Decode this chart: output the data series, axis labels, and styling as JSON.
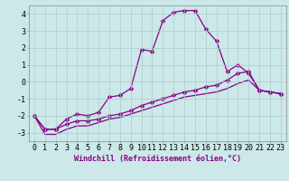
{
  "xlabel": "Windchill (Refroidissement éolien,°C)",
  "bg_color": "#cce8e8",
  "line_color": "#880088",
  "x_hours": [
    0,
    1,
    2,
    3,
    4,
    5,
    6,
    7,
    8,
    9,
    10,
    11,
    12,
    13,
    14,
    15,
    16,
    17,
    18,
    19,
    20,
    21,
    22,
    23
  ],
  "line1_y": [
    -2.0,
    -2.8,
    -2.8,
    -2.2,
    -1.9,
    -2.0,
    -1.8,
    -0.9,
    -0.8,
    -0.4,
    1.9,
    1.8,
    3.6,
    4.1,
    4.2,
    4.2,
    3.1,
    2.4,
    0.6,
    1.0,
    0.5,
    -0.5,
    -0.6,
    -0.7
  ],
  "line2_y": [
    -2.0,
    -2.8,
    -2.8,
    -2.5,
    -2.3,
    -2.3,
    -2.2,
    -2.0,
    -1.9,
    -1.7,
    -1.4,
    -1.2,
    -1.0,
    -0.8,
    -0.6,
    -0.5,
    -0.3,
    -0.2,
    0.1,
    0.5,
    0.6,
    -0.5,
    -0.6,
    -0.7
  ],
  "line3_y": [
    -2.0,
    -3.1,
    -3.1,
    -2.8,
    -2.6,
    -2.6,
    -2.4,
    -2.2,
    -2.1,
    -1.9,
    -1.7,
    -1.5,
    -1.3,
    -1.1,
    -0.9,
    -0.8,
    -0.7,
    -0.6,
    -0.4,
    -0.1,
    0.1,
    -0.5,
    -0.6,
    -0.7
  ],
  "ylim": [
    -3.5,
    4.5
  ],
  "yticks": [
    -3,
    -2,
    -1,
    0,
    1,
    2,
    3,
    4
  ],
  "grid_color": "#aacccc",
  "markersize": 2.5,
  "linewidth": 0.9,
  "xlabel_fontsize": 6.0,
  "tick_fontsize": 6.0
}
